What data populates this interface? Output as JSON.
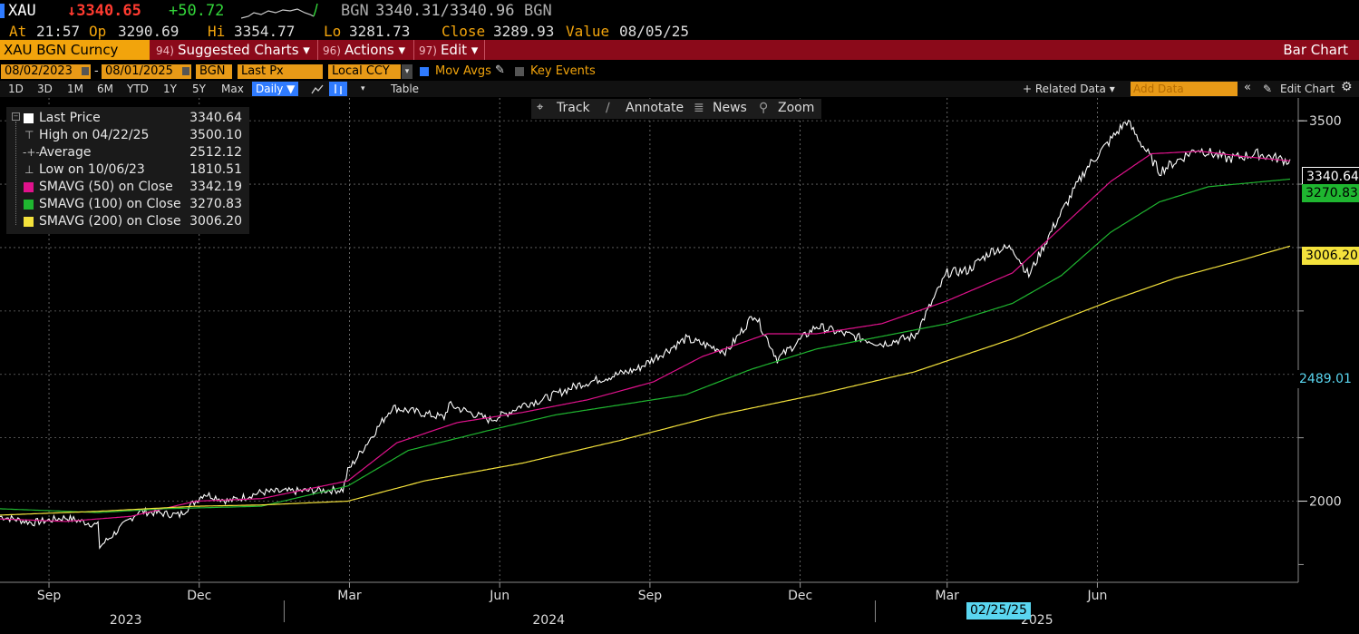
{
  "header": {
    "ticker": "XAU",
    "last": "↓3340.65",
    "change": "+50.72",
    "bid_ask_label": "BGN",
    "bid_ask": "3340.31/3340.96",
    "bid_ask_unit": "BGN",
    "at_label": "At",
    "at_time": "21:57",
    "op_label": "Op",
    "op": "3290.69",
    "hi_label": "Hi",
    "hi": "3354.77",
    "lo_label": "Lo",
    "lo": "3281.73",
    "close_label": "Close",
    "close": "3289.93",
    "value_label": "Value",
    "value_date": "08/05/25"
  },
  "menubar": {
    "security": "XAU BGN Curncy",
    "suggested_num": "94)",
    "suggested": "Suggested Charts ▾",
    "actions_num": "96)",
    "actions": "Actions ▾",
    "edit_num": "97)",
    "edit": "Edit ▾",
    "chart_type": "Bar Chart"
  },
  "params": {
    "start_date": "08/02/2023",
    "dash": "-",
    "end_date": "08/01/2025",
    "source": "BGN",
    "field": "Last Px",
    "currency": "Local CCY",
    "mov_avgs": "Mov Avgs",
    "key_events": "Key Events"
  },
  "periods": {
    "items": [
      "1D",
      "3D",
      "1M",
      "6M",
      "YTD",
      "1Y",
      "5Y",
      "Max"
    ],
    "frequency": "Daily ▼",
    "table": "Table",
    "related": "+ Related Data ▾",
    "add_data": "Add Data",
    "edit_chart": "Edit Chart"
  },
  "chart_tools": {
    "track": "Track",
    "annotate": "Annotate",
    "news": "News",
    "zoom": "Zoom"
  },
  "legend": [
    {
      "label": "Last Price",
      "value": "3340.64",
      "color": "#ffffff",
      "kind": "box"
    },
    {
      "label": "High on 04/22/25",
      "value": "3500.10",
      "color": "#cccccc",
      "kind": "high"
    },
    {
      "label": "Average",
      "value": "2512.12",
      "color": "#cccccc",
      "kind": "avg"
    },
    {
      "label": "Low on 10/06/23",
      "value": "1810.51",
      "color": "#cccccc",
      "kind": "low"
    },
    {
      "label": "SMAVG (50)  on Close",
      "value": "3342.19",
      "color": "#e0128c",
      "kind": "box"
    },
    {
      "label": "SMAVG (100)  on Close",
      "value": "3270.83",
      "color": "#1fb630",
      "kind": "box"
    },
    {
      "label": "SMAVG (200)  on Close",
      "value": "3006.20",
      "color": "#f4e23c",
      "kind": "box"
    }
  ],
  "right_tags": [
    {
      "value": "3340.64",
      "bg": "#000000",
      "fg": "#ffffff",
      "border": "#ffffff"
    },
    {
      "value": "3270.83",
      "bg": "#1fb630",
      "fg": "#000000",
      "border": "#1fb630"
    },
    {
      "value": "3006.20",
      "bg": "#f4e23c",
      "fg": "#000000",
      "border": "#f4e23c"
    },
    {
      "value": "2489.01",
      "bg": "#000000",
      "fg": "#5ad6f0",
      "border": "#000000"
    }
  ],
  "cursor_date": "02/25/25",
  "chart_data": {
    "type": "line",
    "title": "",
    "y_ticks": [
      2000,
      3500
    ],
    "y_tick_labels": [
      "2000",
      "3500"
    ],
    "ylim": [
      1680,
      3590
    ],
    "x_month_labels": [
      "Sep",
      "Dec",
      "Mar",
      "Jun",
      "Sep",
      "Dec",
      "Mar",
      "Jun"
    ],
    "x_month_values": [
      30,
      122,
      214,
      306,
      398,
      490,
      580,
      672
    ],
    "x_year_labels": [
      "2023",
      "2024",
      "2025"
    ],
    "x_year_values": [
      77,
      336,
      635
    ],
    "xlim": [
      0,
      795
    ],
    "grid": true,
    "legend_position": "top-left",
    "series": [
      {
        "name": "Last Price",
        "color": "#ffffff",
        "x": [
          0,
          20,
          40,
          60,
          61,
          85,
          110,
          125,
          140,
          160,
          183,
          210,
          213,
          240,
          272,
          275,
          300,
          310,
          320,
          332,
          355,
          390,
          420,
          445,
          462,
          476,
          500,
          540,
          560,
          580,
          593,
          600,
          608,
          620,
          630,
          645,
          665,
          690,
          710,
          733,
          752,
          770,
          790
        ],
        "values": [
          1940,
          1915,
          1935,
          1905,
          1820,
          1960,
          1945,
          2030,
          2000,
          2035,
          2040,
          2045,
          2120,
          2370,
          2330,
          2380,
          2320,
          2345,
          2380,
          2400,
          2460,
          2520,
          2640,
          2590,
          2740,
          2560,
          2690,
          2620,
          2650,
          2900,
          2910,
          2950,
          2990,
          3000,
          2890,
          3080,
          3310,
          3500,
          3300,
          3390,
          3350,
          3370,
          3340
        ]
      },
      {
        "name": "SMAVG (50)  on Close",
        "color": "#e0128c",
        "x": [
          0,
          40,
          80,
          120,
          160,
          213,
          243,
          280,
          320,
          360,
          400,
          430,
          470,
          500,
          540,
          580,
          620,
          650,
          680,
          705,
          735,
          760,
          790
        ],
        "values": [
          1930,
          1920,
          1940,
          2000,
          2010,
          2080,
          2230,
          2310,
          2350,
          2400,
          2470,
          2570,
          2660,
          2660,
          2700,
          2790,
          2900,
          3080,
          3260,
          3370,
          3380,
          3360,
          3342
        ]
      },
      {
        "name": "SMAVG (100)  on Close",
        "color": "#1fb630",
        "x": [
          0,
          60,
          100,
          160,
          213,
          250,
          300,
          340,
          380,
          420,
          460,
          500,
          540,
          580,
          620,
          650,
          680,
          710,
          740,
          790
        ],
        "values": [
          1970,
          1955,
          1970,
          1980,
          2060,
          2200,
          2280,
          2340,
          2380,
          2420,
          2520,
          2600,
          2650,
          2700,
          2780,
          2890,
          3060,
          3180,
          3240,
          3270
        ]
      },
      {
        "name": "SMAVG (200)  on Close",
        "color": "#f4e23c",
        "x": [
          0,
          60,
          120,
          160,
          213,
          260,
          320,
          380,
          440,
          500,
          560,
          620,
          680,
          720,
          760,
          790
        ],
        "values": [
          1945,
          1960,
          1980,
          1985,
          2000,
          2080,
          2150,
          2240,
          2340,
          2420,
          2510,
          2640,
          2790,
          2880,
          2950,
          3006
        ]
      }
    ]
  }
}
